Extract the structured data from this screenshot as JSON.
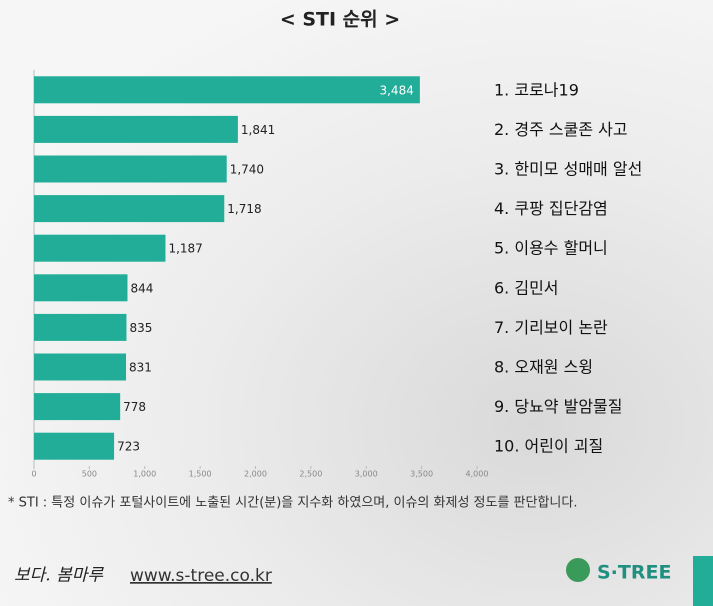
{
  "chart_data": {
    "type": "hbar",
    "title": "< STI 순위 >",
    "categories": [
      "1. 코로나19",
      "2. 경주 스쿨존 사고",
      "3. 한미모 성매매 알선",
      "4. 쿠팡 집단감염",
      "5. 이용수 할머니",
      "6. 김민서",
      "7. 기리보이 논란",
      "8. 오재원 스윙",
      "9. 당뇨약 발암물질",
      "10. 어린이 괴질"
    ],
    "values": [
      3484,
      1841,
      1740,
      1718,
      1187,
      844,
      835,
      831,
      778,
      723
    ],
    "value_labels": [
      "3,484",
      "1,841",
      "1,740",
      "1,718",
      "1,187",
      "844",
      "835",
      "831",
      "778",
      "723"
    ],
    "color": "#21ad97",
    "xlim": [
      0,
      4000
    ],
    "xticks": [
      0,
      500,
      {
        "value": 1000,
        "label": "1,000"
      },
      {
        "value": 1500,
        "label": "1,500"
      },
      {
        "value": 2000,
        "label": "2,000"
      },
      {
        "value": 2500,
        "label": "2,500"
      },
      {
        "value": 3000,
        "label": "3,000"
      },
      {
        "value": 3500,
        "label": "3,500"
      },
      {
        "value": 4000,
        "label": "4,000"
      }
    ]
  },
  "footnote": "* STI : 특정 이슈가 포털사이트에 노출된 시간(분)을 지수화 하였으며, 이슈의 화제성 정도를 판단합니다.",
  "footer": {
    "slogan": "보다. 봄마루",
    "url": "www.s-tree.co.kr",
    "brand": "S·TREE"
  }
}
